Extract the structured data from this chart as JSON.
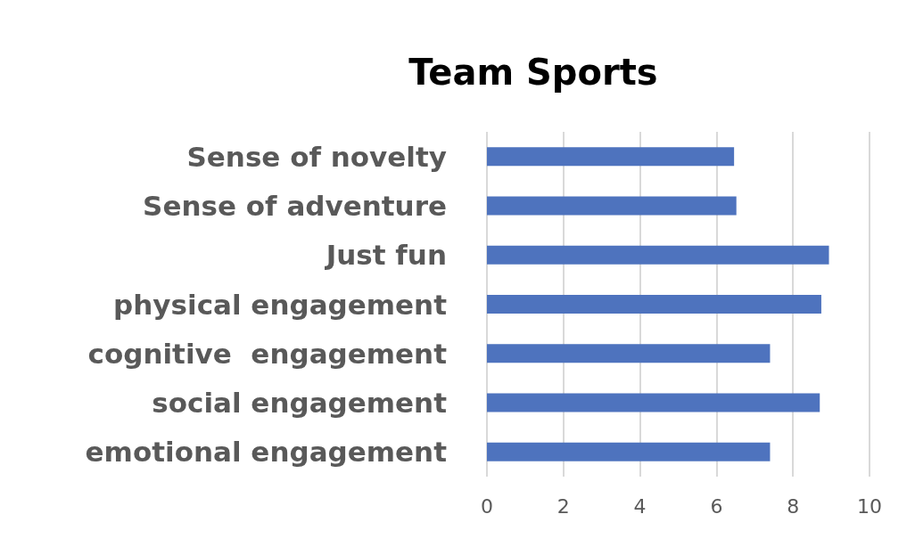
{
  "chart_data": {
    "type": "bar",
    "orientation": "horizontal",
    "title": "Team Sports",
    "categories": [
      "Sense of novelty",
      "Sense of adventure",
      "Just fun",
      "physical engagement",
      "cognitive  engagement",
      "social engagement",
      "emotional engagement"
    ],
    "values": [
      6.46,
      6.52,
      8.94,
      8.74,
      7.4,
      8.7,
      7.4
    ],
    "color": "#4e73be",
    "xlim": [
      0,
      10
    ],
    "xticks": [
      0,
      2,
      4,
      6,
      8,
      10
    ],
    "grid": "x"
  }
}
